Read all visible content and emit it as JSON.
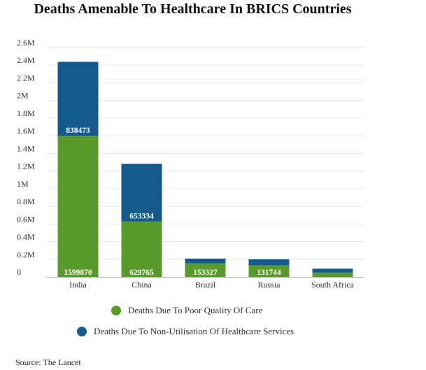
{
  "colors": {
    "poor_quality": "#5a9a2c",
    "non_utilisation": "#145a8c",
    "grid": "#e6e6e6",
    "axis": "#bbbbbb"
  },
  "chart_data": {
    "type": "bar",
    "stacked": true,
    "title": "Deaths Amenable To Healthcare In BRICS Countries",
    "categories": [
      "India",
      "China",
      "Brazil",
      "Russia",
      "South Africa"
    ],
    "y_ticks": [
      "0",
      "0.2M",
      "0.4M",
      "0.6M",
      "0.8M",
      "1M",
      "1.2M",
      "1.4M",
      "1.6M",
      "1.8M",
      "2M",
      "2.2M",
      "2.4M",
      "2.6M"
    ],
    "ylim": [
      0,
      2600000
    ],
    "grid": true,
    "legend_position": "bottom",
    "series": [
      {
        "name": "Deaths Due To Poor Quality Of Care",
        "values": [
          1599870,
          629765,
          153327,
          131744,
          50000
        ],
        "labels": [
          "1599870",
          "629765",
          "153327",
          "131744",
          ""
        ]
      },
      {
        "name": "Deaths Due To Non-Utilisation Of Healthcare Services",
        "values": [
          838473,
          653334,
          55000,
          70000,
          45000
        ],
        "labels": [
          "838473",
          "653334",
          "",
          "",
          ""
        ]
      }
    ]
  },
  "source": "Source: The Lancet"
}
